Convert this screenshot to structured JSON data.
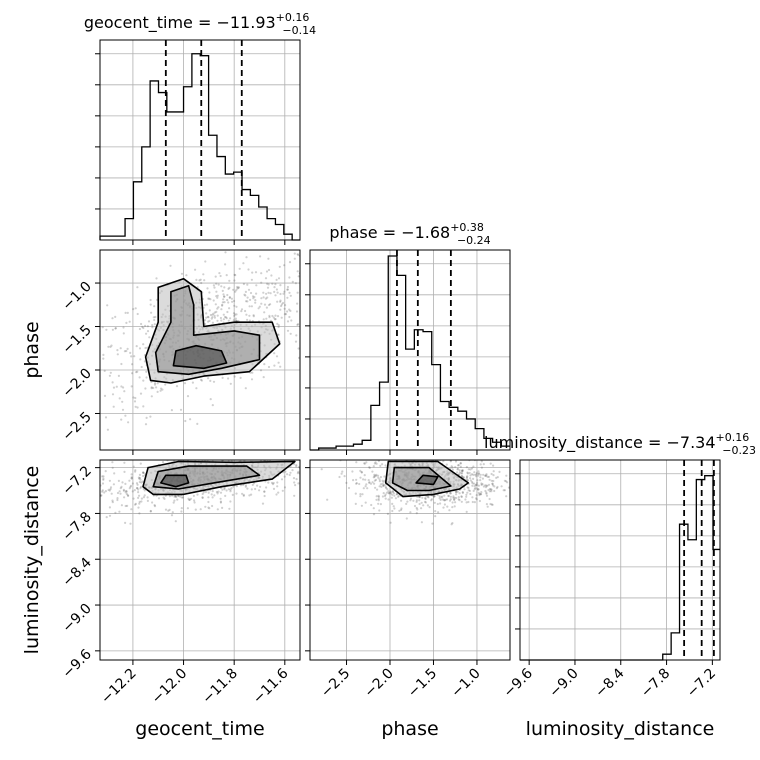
{
  "chart_data": [
    {
      "type": "histogram",
      "panel": "geocent_time-1d",
      "title": {
        "param": "geocent_time",
        "median": "−11.93",
        "plus": "+0.16",
        "minus": "−0.14"
      },
      "xlim": [
        -12.33,
        -11.54
      ],
      "ylim": [
        0,
        1.0
      ],
      "bins": {
        "edges": [
          -12.33,
          -12.297,
          -12.264,
          -12.231,
          -12.198,
          -12.165,
          -12.132,
          -12.099,
          -12.066,
          -12.033,
          -12.0,
          -11.967,
          -11.934,
          -11.901,
          -11.868,
          -11.835,
          -11.802,
          -11.769,
          -11.736,
          -11.703,
          -11.67,
          -11.637,
          -11.604,
          -11.571,
          -11.538
        ],
        "counts": [
          0.02,
          0.02,
          0.02,
          0.11,
          0.3,
          0.48,
          0.82,
          0.76,
          0.66,
          0.66,
          0.79,
          0.96,
          0.95,
          0.54,
          0.43,
          0.34,
          0.35,
          0.26,
          0.23,
          0.17,
          0.11,
          0.08,
          0.03,
          0.0
        ]
      },
      "quantile_lines": [
        -12.07,
        -11.93,
        -11.77
      ]
    },
    {
      "type": "histogram",
      "panel": "phase-1d",
      "title": {
        "param": "phase",
        "median": "−1.68",
        "plus": "+0.38",
        "minus": "−0.24"
      },
      "xlim": [
        -2.92,
        -0.62
      ],
      "ylim": [
        0,
        1.0
      ],
      "bins": {
        "edges": [
          -2.92,
          -2.82,
          -2.72,
          -2.62,
          -2.52,
          -2.42,
          -2.32,
          -2.22,
          -2.12,
          -2.02,
          -1.92,
          -1.82,
          -1.72,
          -1.62,
          -1.52,
          -1.42,
          -1.32,
          -1.22,
          -1.12,
          -1.02,
          -0.92,
          -0.82,
          -0.72,
          -0.62
        ],
        "counts": [
          0.0,
          0.01,
          0.01,
          0.02,
          0.02,
          0.03,
          0.05,
          0.23,
          0.35,
          1.0,
          0.9,
          0.52,
          0.62,
          0.61,
          0.44,
          0.25,
          0.22,
          0.2,
          0.16,
          0.11,
          0.06,
          0.04,
          0.02
        ]
      },
      "quantile_lines": [
        -1.92,
        -1.68,
        -1.3
      ]
    },
    {
      "type": "histogram",
      "panel": "luminosity_distance-1d",
      "title": {
        "param": "luminosity_distance",
        "median": "−7.34",
        "plus": "+0.16",
        "minus": "−0.23"
      },
      "xlim": [
        -9.72,
        -7.1
      ],
      "ylim": [
        0,
        1.0
      ],
      "bins": {
        "edges": [
          -9.72,
          -9.61,
          -9.5,
          -9.39,
          -9.28,
          -9.17,
          -9.06,
          -8.95,
          -8.84,
          -8.73,
          -8.62,
          -8.51,
          -8.4,
          -8.29,
          -8.18,
          -8.07,
          -7.96,
          -7.85,
          -7.74,
          -7.63,
          -7.52,
          -7.41,
          -7.3,
          -7.19,
          -7.1
        ],
        "counts": [
          0.0,
          0.0,
          0.0,
          0.0,
          0.0,
          0.0,
          0.0,
          0.0,
          0.0,
          0.0,
          0.0,
          0.0,
          0.0,
          0.0,
          0.0,
          0.0,
          0.0,
          0.03,
          0.14,
          0.7,
          0.62,
          0.93,
          0.95,
          0.57
        ]
      },
      "quantile_lines": [
        -7.57,
        -7.34,
        -7.18
      ]
    },
    {
      "type": "contour-2d",
      "panel": "phase-vs-geocent_time",
      "x_param": "geocent_time",
      "y_param": "phase",
      "xlim": [
        -12.33,
        -11.54
      ],
      "ylim": [
        -2.92,
        -0.62
      ],
      "point_cloud": {
        "center": [
          -11.9,
          -1.55
        ],
        "spread": [
          0.24,
          0.43
        ],
        "trend": 0.55
      },
      "contour_levels": [
        [
          [
            -12.13,
            -2.12
          ],
          [
            -12.15,
            -1.85
          ],
          [
            -12.1,
            -1.45
          ],
          [
            -12.1,
            -1.05
          ],
          [
            -12.0,
            -0.95
          ],
          [
            -11.93,
            -1.1
          ],
          [
            -11.92,
            -1.5
          ],
          [
            -11.8,
            -1.45
          ],
          [
            -11.65,
            -1.45
          ],
          [
            -11.62,
            -1.7
          ],
          [
            -11.74,
            -2.02
          ],
          [
            -11.92,
            -2.07
          ],
          [
            -12.05,
            -2.15
          ]
        ],
        [
          [
            -12.1,
            -2.02
          ],
          [
            -12.11,
            -1.8
          ],
          [
            -12.05,
            -1.45
          ],
          [
            -12.05,
            -1.1
          ],
          [
            -11.98,
            -1.03
          ],
          [
            -11.96,
            -1.25
          ],
          [
            -11.96,
            -1.6
          ],
          [
            -11.8,
            -1.55
          ],
          [
            -11.7,
            -1.6
          ],
          [
            -11.7,
            -1.88
          ],
          [
            -11.85,
            -1.98
          ],
          [
            -11.98,
            -2.05
          ]
        ],
        [
          [
            -12.04,
            -1.95
          ],
          [
            -12.03,
            -1.78
          ],
          [
            -11.95,
            -1.72
          ],
          [
            -11.85,
            -1.78
          ],
          [
            -11.83,
            -1.92
          ],
          [
            -11.92,
            -1.98
          ]
        ]
      ]
    },
    {
      "type": "contour-2d",
      "panel": "luminosity_distance-vs-geocent_time",
      "x_param": "geocent_time",
      "y_param": "luminosity_distance",
      "xlim": [
        -12.33,
        -11.54
      ],
      "ylim": [
        -9.72,
        -7.1
      ],
      "point_cloud": {
        "center": [
          -11.93,
          -7.36
        ],
        "spread": [
          0.22,
          0.18
        ],
        "trend": 0.45
      },
      "contour_levels": [
        [
          [
            -12.16,
            -7.45
          ],
          [
            -12.14,
            -7.2
          ],
          [
            -12.02,
            -7.12
          ],
          [
            -11.8,
            -7.13
          ],
          [
            -11.56,
            -7.12
          ],
          [
            -11.65,
            -7.35
          ],
          [
            -11.85,
            -7.45
          ],
          [
            -12.0,
            -7.55
          ],
          [
            -12.12,
            -7.55
          ]
        ],
        [
          [
            -12.12,
            -7.45
          ],
          [
            -12.1,
            -7.25
          ],
          [
            -11.98,
            -7.18
          ],
          [
            -11.75,
            -7.18
          ],
          [
            -11.7,
            -7.3
          ],
          [
            -11.88,
            -7.4
          ],
          [
            -12.02,
            -7.48
          ]
        ],
        [
          [
            -12.09,
            -7.4
          ],
          [
            -12.07,
            -7.3
          ],
          [
            -11.99,
            -7.3
          ],
          [
            -11.98,
            -7.4
          ],
          [
            -12.03,
            -7.45
          ]
        ]
      ]
    },
    {
      "type": "contour-2d",
      "panel": "luminosity_distance-vs-phase",
      "x_param": "phase",
      "y_param": "luminosity_distance",
      "xlim": [
        -2.92,
        -0.62
      ],
      "ylim": [
        -9.72,
        -7.1
      ],
      "point_cloud": {
        "center": [
          -1.55,
          -7.38
        ],
        "spread": [
          0.42,
          0.18
        ],
        "trend": 0.0
      },
      "contour_levels": [
        [
          [
            -2.02,
            -7.12
          ],
          [
            -2.05,
            -7.4
          ],
          [
            -1.85,
            -7.58
          ],
          [
            -1.5,
            -7.55
          ],
          [
            -1.2,
            -7.48
          ],
          [
            -1.1,
            -7.4
          ],
          [
            -1.45,
            -7.12
          ]
        ],
        [
          [
            -1.95,
            -7.2
          ],
          [
            -1.97,
            -7.4
          ],
          [
            -1.8,
            -7.5
          ],
          [
            -1.55,
            -7.5
          ],
          [
            -1.3,
            -7.44
          ],
          [
            -1.55,
            -7.2
          ]
        ],
        [
          [
            -1.7,
            -7.4
          ],
          [
            -1.62,
            -7.3
          ],
          [
            -1.45,
            -7.32
          ],
          [
            -1.5,
            -7.42
          ]
        ]
      ]
    }
  ],
  "axes": {
    "geocent_time": {
      "label": "geocent_time",
      "ticks": [
        -12.2,
        -12.0,
        -11.8,
        -11.6
      ],
      "tick_labels": [
        "−12.2",
        "−12.0",
        "−11.8",
        "−11.6"
      ]
    },
    "phase_x": {
      "label": "phase",
      "ticks": [
        -2.5,
        -2.0,
        -1.5,
        -1.0
      ],
      "tick_labels": [
        "−2.5",
        "−2.0",
        "−1.5",
        "−1.0"
      ]
    },
    "phase_y": {
      "label": "phase",
      "ticks": [
        -2.5,
        -2.0,
        -1.5,
        -1.0
      ],
      "tick_labels": [
        "−2.5",
        "−2.0",
        "−1.5",
        "−1.0"
      ]
    },
    "luminosity_distance_x": {
      "label": "luminosity_distance",
      "ticks": [
        -9.6,
        -9.0,
        -8.4,
        -7.8,
        -7.2
      ],
      "tick_labels": [
        "−9.6",
        "−9.0",
        "−8.4",
        "−7.8",
        "−7.2"
      ]
    },
    "luminosity_distance_y": {
      "label": "luminosity_distance",
      "ticks": [
        -9.6,
        -9.0,
        -8.4,
        -7.8,
        -7.2
      ],
      "tick_labels": [
        "−9.6",
        "−9.0",
        "−8.4",
        "−7.8",
        "−7.2"
      ]
    }
  },
  "grid": true,
  "colors": {
    "hist": "#000000",
    "quantile": "#000000",
    "scatter": "#555555",
    "grid": "#b0b0b0"
  }
}
